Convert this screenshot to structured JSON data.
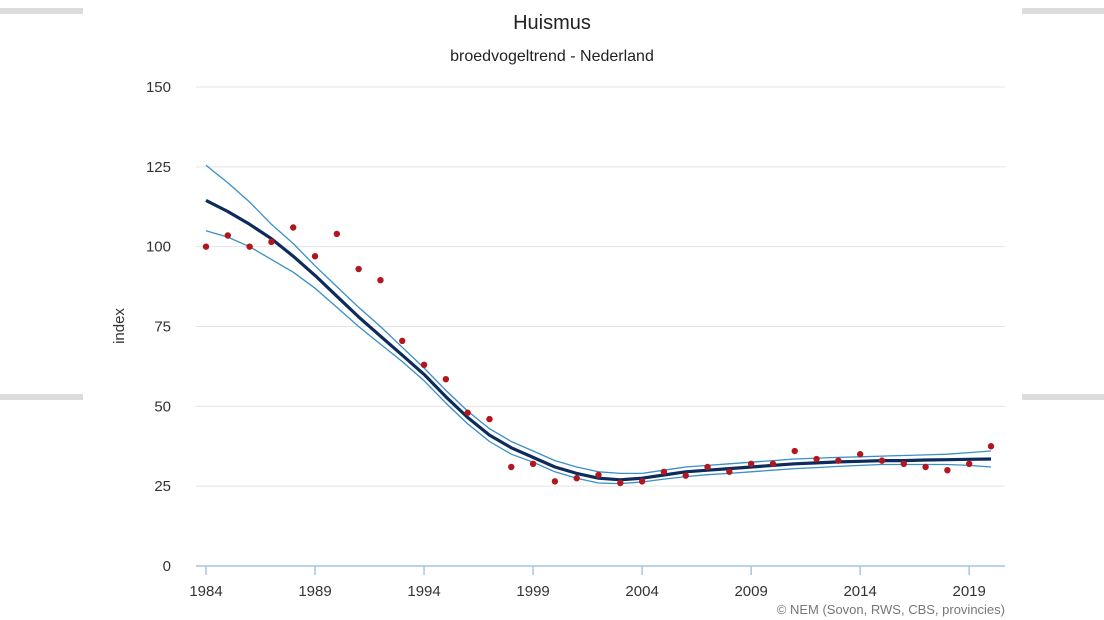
{
  "chart_data": {
    "type": "line",
    "title": "Huismus",
    "subtitle": "broedvogeltrend - Nederland",
    "ylabel": "index",
    "xlabel": "",
    "ylim": [
      0,
      150
    ],
    "xlim": [
      1984,
      2020
    ],
    "y_ticks": [
      0,
      25,
      50,
      75,
      100,
      125,
      150
    ],
    "x_ticks": [
      1984,
      1989,
      1994,
      1999,
      2004,
      2009,
      2014,
      2019
    ],
    "grid": true,
    "credit": "© NEM (Sovon, RWS, CBS, provincies)",
    "colors": {
      "trend": "#0d2b5b",
      "band": "#3a8fc4",
      "points": "#b3171e",
      "grid": "#e4e4e4",
      "axis": "#a9c4de"
    },
    "series": [
      {
        "role": "trend",
        "x": [
          1984,
          1985,
          1986,
          1987,
          1988,
          1989,
          1990,
          1991,
          1992,
          1993,
          1994,
          1995,
          1996,
          1997,
          1998,
          1999,
          2000,
          2001,
          2002,
          2003,
          2004,
          2005,
          2006,
          2007,
          2008,
          2009,
          2010,
          2011,
          2012,
          2013,
          2014,
          2015,
          2016,
          2017,
          2018,
          2019,
          2020
        ],
        "values": [
          114.5,
          111,
          107,
          102.5,
          97,
          91,
          84.5,
          78,
          72,
          66,
          60,
          53,
          46.5,
          41,
          37,
          34,
          31,
          29,
          27.5,
          27,
          27.5,
          28.5,
          29.5,
          30,
          30.5,
          31,
          31.5,
          32,
          32.3,
          32.6,
          32.8,
          33,
          33,
          33.2,
          33.3,
          33.4,
          33.5
        ]
      },
      {
        "role": "upper",
        "x": [
          1984,
          1985,
          1986,
          1987,
          1988,
          1989,
          1990,
          1991,
          1992,
          1993,
          1994,
          1995,
          1996,
          1997,
          1998,
          1999,
          2000,
          2001,
          2002,
          2003,
          2004,
          2005,
          2006,
          2007,
          2008,
          2009,
          2010,
          2011,
          2012,
          2013,
          2014,
          2015,
          2016,
          2017,
          2018,
          2019,
          2020
        ],
        "values": [
          125.5,
          120,
          114,
          107,
          101,
          94,
          87.5,
          81,
          75,
          68.5,
          62,
          55,
          48.5,
          43,
          39,
          36,
          33,
          31,
          29.5,
          29,
          29,
          30,
          31,
          31.5,
          32,
          32.5,
          33,
          33.5,
          33.8,
          34,
          34.2,
          34.4,
          34.6,
          34.8,
          35,
          35.5,
          36
        ]
      },
      {
        "role": "lower",
        "x": [
          1984,
          1985,
          1986,
          1987,
          1988,
          1989,
          1990,
          1991,
          1992,
          1993,
          1994,
          1995,
          1996,
          1997,
          1998,
          1999,
          2000,
          2001,
          2002,
          2003,
          2004,
          2005,
          2006,
          2007,
          2008,
          2009,
          2010,
          2011,
          2012,
          2013,
          2014,
          2015,
          2016,
          2017,
          2018,
          2019,
          2020
        ],
        "values": [
          105,
          103,
          100,
          96,
          92,
          87,
          81,
          75,
          69.5,
          64,
          58,
          51,
          44.5,
          39,
          35,
          32.5,
          29.5,
          27.5,
          26,
          25.8,
          26.3,
          27.2,
          28,
          28.6,
          29,
          29.5,
          30,
          30.5,
          30.8,
          31.2,
          31.5,
          31.8,
          31.8,
          31.8,
          31.8,
          31.5,
          31
        ]
      },
      {
        "role": "observed",
        "x": [
          1984,
          1985,
          1986,
          1987,
          1988,
          1989,
          1990,
          1991,
          1992,
          1993,
          1994,
          1995,
          1996,
          1997,
          1998,
          1999,
          2000,
          2001,
          2002,
          2003,
          2004,
          2005,
          2006,
          2007,
          2008,
          2009,
          2010,
          2011,
          2012,
          2013,
          2014,
          2015,
          2016,
          2017,
          2018,
          2019,
          2020
        ],
        "values": [
          100,
          103.5,
          100,
          101.5,
          106,
          97,
          104,
          93,
          89.5,
          70.5,
          63,
          58.5,
          48,
          46,
          31,
          32,
          26.5,
          27.5,
          28.5,
          26,
          26.5,
          29.5,
          28.3,
          31,
          29.5,
          32,
          32,
          36,
          33.5,
          33,
          35,
          33,
          32,
          31,
          30,
          32,
          37.5
        ]
      }
    ]
  }
}
